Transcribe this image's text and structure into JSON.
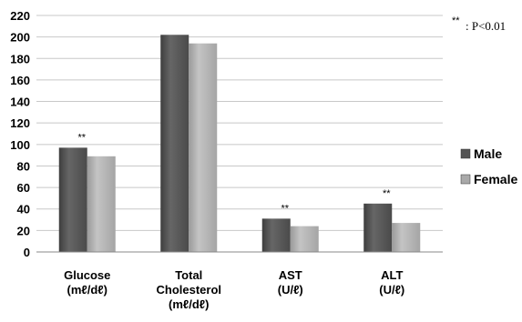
{
  "chart_data": {
    "type": "bar",
    "categories": [
      [
        "Glucose",
        "(mℓ/dℓ)"
      ],
      [
        "Total",
        "Cholesterol",
        "(mℓ/dℓ)"
      ],
      [
        "AST",
        "(U/ℓ)"
      ],
      [
        "ALT",
        "(U/ℓ)"
      ]
    ],
    "series": [
      {
        "name": "Male",
        "values": [
          97,
          202,
          31,
          45
        ],
        "color": "#545454"
      },
      {
        "name": "Female",
        "values": [
          89,
          194,
          24,
          27
        ],
        "color": "#a9a9a9"
      }
    ],
    "significance": [
      "**",
      "",
      "**",
      "**"
    ],
    "ylim": [
      0,
      220
    ],
    "yticks": [
      0,
      20,
      40,
      60,
      80,
      100,
      120,
      140,
      160,
      180,
      200,
      220
    ],
    "grid": true,
    "legend": "right",
    "note": {
      "marker": "**",
      "text": ": P<0.01"
    }
  }
}
